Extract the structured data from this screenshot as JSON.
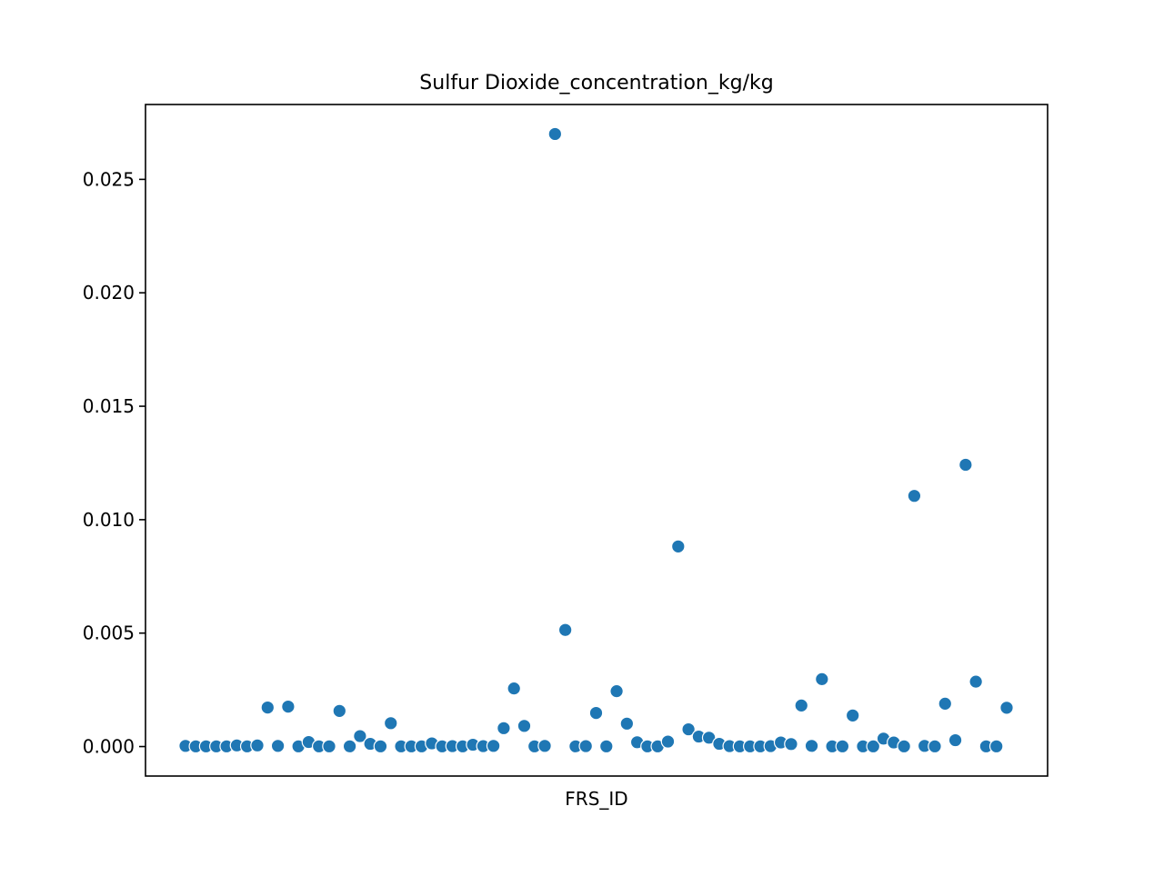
{
  "chart_data": {
    "type": "scatter",
    "title": "Sulfur Dioxide_concentration_kg/kg",
    "xlabel": "FRS_ID",
    "ylabel": "",
    "x_ticks_shown": false,
    "ylim": [
      -0.0013,
      0.0283
    ],
    "y_ticks": [
      0.0,
      0.005,
      0.01,
      0.015,
      0.02,
      0.025
    ],
    "y_tick_labels": [
      "0.000",
      "0.005",
      "0.010",
      "0.015",
      "0.020",
      "0.025"
    ],
    "grid": false,
    "marker_color": "#1f77b4",
    "marker_edge_color": "#ffffff",
    "series": [
      {
        "values": [
          3e-05,
          1e-05,
          1e-05,
          1e-05,
          1e-05,
          5e-05,
          1e-05,
          5e-05,
          0.00172,
          3e-05,
          0.00176,
          1e-05,
          0.0002,
          1e-05,
          1e-05,
          0.00157,
          1e-05,
          0.00046,
          0.00012,
          1e-05,
          0.00103,
          1e-05,
          1e-05,
          1e-05,
          0.00014,
          1e-05,
          2e-05,
          1e-05,
          8e-05,
          2e-05,
          3e-05,
          0.00081,
          0.00256,
          0.00091,
          1e-05,
          3e-05,
          0.027,
          0.00514,
          1e-05,
          2e-05,
          0.00148,
          1e-05,
          0.00244,
          0.00101,
          0.00019,
          1e-05,
          1e-05,
          0.00022,
          0.00882,
          0.00076,
          0.00044,
          0.00039,
          0.00012,
          2e-05,
          1e-05,
          1e-05,
          1e-05,
          2e-05,
          0.00018,
          0.00011,
          0.00181,
          3e-05,
          0.00297,
          1e-05,
          1e-05,
          0.00137,
          1e-05,
          1e-05,
          0.00035,
          0.00018,
          1e-05,
          0.01105,
          3e-05,
          1e-05,
          0.00189,
          0.00028,
          0.01242,
          0.00286,
          1e-05,
          1e-05,
          0.00171
        ]
      }
    ]
  }
}
